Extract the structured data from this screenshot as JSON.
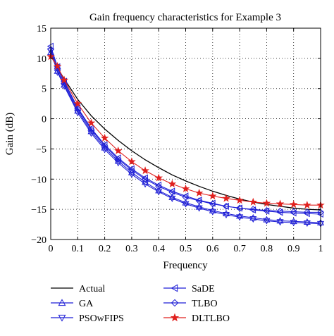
{
  "chart_data": {
    "type": "line",
    "title": "Gain frequency characteristics for Example 3",
    "xlabel": "Frequency",
    "ylabel": "Gain (dB)",
    "xlim": [
      0,
      1
    ],
    "ylim": [
      -20,
      15
    ],
    "xticks": [
      0,
      0.1,
      0.2,
      0.3,
      0.4,
      0.5,
      0.6,
      0.7,
      0.8,
      0.9,
      1
    ],
    "xtick_labels": [
      "0",
      "0.1",
      "0.2",
      "0.3",
      "0.4",
      "0.5",
      "0.6",
      "0.7",
      "0.8",
      "0.9",
      "1"
    ],
    "yticks": [
      15,
      10,
      5,
      0,
      -5,
      -10,
      -15,
      -20
    ],
    "ytick_labels": [
      "15",
      "10",
      "5",
      "0",
      "−5",
      "−10",
      "−15",
      "−20"
    ],
    "grid": "dotted",
    "legend_position": "below",
    "x": [
      0,
      0.025,
      0.05,
      0.1,
      0.15,
      0.2,
      0.25,
      0.3,
      0.35,
      0.4,
      0.45,
      0.5,
      0.55,
      0.6,
      0.65,
      0.7,
      0.75,
      0.8,
      0.85,
      0.9,
      0.95,
      1
    ],
    "series": [
      {
        "name": "Actual",
        "marker": "none",
        "color": "#000000",
        "values": [
          10.5,
          8.4,
          6.6,
          3.2,
          0.5,
          -1.7,
          -3.6,
          -5.3,
          -6.8,
          -8.1,
          -9.3,
          -10.3,
          -11.2,
          -12.0,
          -12.7,
          -13.3,
          -13.8,
          -14.2,
          -14.5,
          -14.8,
          -15.0,
          -15.1
        ]
      },
      {
        "name": "GA",
        "marker": "triangle-up",
        "color": "#1f1fd6",
        "values": [
          11.0,
          7.9,
          5.6,
          1.3,
          -2.1,
          -4.8,
          -7.0,
          -8.9,
          -10.5,
          -11.9,
          -13.0,
          -13.9,
          -14.6,
          -15.2,
          -15.7,
          -16.1,
          -16.4,
          -16.7,
          -16.9,
          -17.0,
          -17.1,
          -17.2
        ]
      },
      {
        "name": "PSOwFIPS",
        "marker": "triangle-down",
        "color": "#1f1fd6",
        "values": [
          11.2,
          7.7,
          5.4,
          1.0,
          -2.4,
          -5.1,
          -7.3,
          -9.2,
          -10.8,
          -12.1,
          -13.2,
          -14.1,
          -14.8,
          -15.4,
          -15.9,
          -16.3,
          -16.6,
          -16.9,
          -17.1,
          -17.2,
          -17.3,
          -17.4
        ]
      },
      {
        "name": "SaDE",
        "marker": "triangle-left",
        "color": "#1f1fd6",
        "values": [
          12.0,
          8.6,
          6.2,
          1.8,
          -1.6,
          -4.3,
          -6.5,
          -8.3,
          -9.8,
          -11.0,
          -12.0,
          -12.8,
          -13.5,
          -14.0,
          -14.5,
          -14.8,
          -15.1,
          -15.3,
          -15.5,
          -15.6,
          -15.7,
          -15.8
        ]
      },
      {
        "name": "TLBO",
        "marker": "diamond",
        "color": "#1f1fd6",
        "values": [
          11.5,
          8.3,
          5.9,
          1.6,
          -1.8,
          -4.5,
          -6.7,
          -8.5,
          -10.0,
          -11.2,
          -12.2,
          -13.0,
          -13.6,
          -14.1,
          -14.5,
          -14.8,
          -15.0,
          -15.2,
          -15.3,
          -15.4,
          -15.5,
          -15.5
        ]
      },
      {
        "name": "DLTLBO",
        "marker": "star",
        "color": "#e0201e",
        "values": [
          10.3,
          8.7,
          6.4,
          2.5,
          -0.7,
          -3.2,
          -5.3,
          -7.1,
          -8.6,
          -9.8,
          -10.8,
          -11.6,
          -12.3,
          -12.8,
          -13.2,
          -13.5,
          -13.8,
          -14.0,
          -14.1,
          -14.2,
          -14.3,
          -14.3
        ]
      }
    ]
  }
}
